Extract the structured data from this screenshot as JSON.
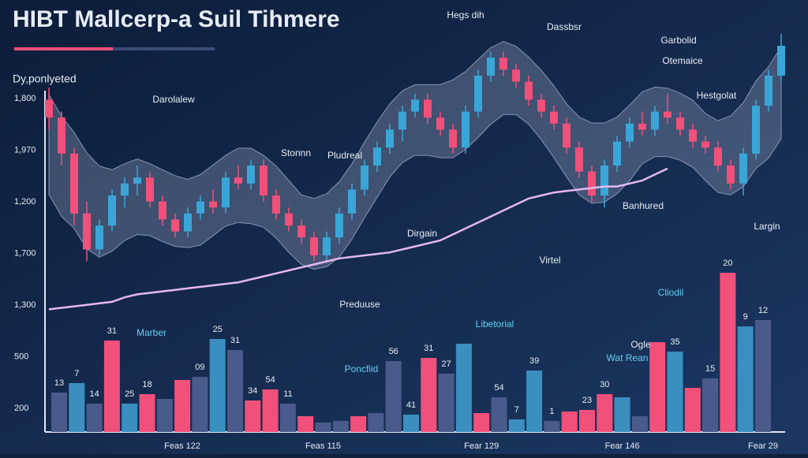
{
  "chart_data": {
    "type": "candlestick",
    "title": "HIBT Mallcerp-a Suil Tihmere",
    "y_axis_title": "Dy,ponlyeted",
    "y_axis_labels": [
      "1,800",
      "1,970",
      "1,200",
      "1,700",
      "1,300",
      "500",
      "200"
    ],
    "ylim": [
      0,
      100
    ],
    "candles": [
      [
        72,
        76,
        62,
        66
      ],
      [
        66,
        68,
        50,
        54
      ],
      [
        54,
        56,
        30,
        34
      ],
      [
        34,
        38,
        18,
        22
      ],
      [
        22,
        32,
        20,
        30
      ],
      [
        30,
        42,
        28,
        40
      ],
      [
        40,
        46,
        36,
        44
      ],
      [
        44,
        50,
        40,
        46
      ],
      [
        46,
        48,
        36,
        38
      ],
      [
        38,
        40,
        30,
        32
      ],
      [
        32,
        34,
        26,
        28
      ],
      [
        28,
        36,
        26,
        34
      ],
      [
        34,
        40,
        32,
        38
      ],
      [
        38,
        42,
        34,
        36
      ],
      [
        36,
        48,
        34,
        46
      ],
      [
        46,
        50,
        42,
        44
      ],
      [
        44,
        52,
        42,
        50
      ],
      [
        50,
        52,
        38,
        40
      ],
      [
        40,
        42,
        32,
        34
      ],
      [
        34,
        36,
        28,
        30
      ],
      [
        30,
        32,
        24,
        26
      ],
      [
        26,
        28,
        18,
        20
      ],
      [
        20,
        28,
        18,
        26
      ],
      [
        26,
        36,
        24,
        34
      ],
      [
        34,
        44,
        32,
        42
      ],
      [
        42,
        52,
        40,
        50
      ],
      [
        50,
        58,
        48,
        56
      ],
      [
        56,
        64,
        54,
        62
      ],
      [
        62,
        70,
        58,
        68
      ],
      [
        68,
        74,
        66,
        72
      ],
      [
        72,
        74,
        64,
        66
      ],
      [
        66,
        68,
        60,
        62
      ],
      [
        62,
        64,
        54,
        56
      ],
      [
        56,
        70,
        54,
        68
      ],
      [
        68,
        82,
        66,
        80
      ],
      [
        80,
        88,
        78,
        86
      ],
      [
        86,
        88,
        80,
        82
      ],
      [
        82,
        84,
        76,
        78
      ],
      [
        78,
        80,
        70,
        72
      ],
      [
        72,
        74,
        66,
        68
      ],
      [
        68,
        70,
        62,
        64
      ],
      [
        64,
        66,
        54,
        56
      ],
      [
        56,
        58,
        46,
        48
      ],
      [
        48,
        50,
        38,
        40
      ],
      [
        40,
        52,
        36,
        50
      ],
      [
        50,
        60,
        48,
        58
      ],
      [
        58,
        66,
        56,
        64
      ],
      [
        64,
        68,
        60,
        62
      ],
      [
        62,
        70,
        60,
        68
      ],
      [
        68,
        74,
        64,
        66
      ],
      [
        66,
        68,
        60,
        62
      ],
      [
        62,
        64,
        56,
        58
      ],
      [
        58,
        60,
        54,
        56
      ],
      [
        56,
        58,
        48,
        50
      ],
      [
        50,
        52,
        42,
        44
      ],
      [
        44,
        56,
        40,
        54
      ],
      [
        54,
        72,
        52,
        70
      ],
      [
        70,
        82,
        68,
        80
      ],
      [
        80,
        94,
        78,
        90
      ]
    ],
    "up_color": "#3aa6d8",
    "down_color": "#f0507a",
    "ma": {
      "color": "#e6b8f0",
      "values": [
        2,
        2.5,
        3,
        3.5,
        4,
        4.5,
        6,
        7,
        7.5,
        8,
        8.5,
        9,
        9.5,
        10,
        10.5,
        11,
        12,
        13,
        14,
        15,
        16,
        17,
        18,
        19,
        19.5,
        20,
        20.5,
        21,
        22,
        23,
        24,
        25,
        27,
        29,
        31,
        33,
        35,
        37,
        39,
        40,
        41,
        41.5,
        42,
        42.5,
        43,
        43,
        44,
        45,
        47,
        49,
        null,
        null,
        null,
        null,
        null,
        null,
        null,
        null,
        null
      ]
    },
    "bars": {
      "ylim": [
        0,
        104
      ],
      "values": [
        25,
        31,
        18,
        58,
        18,
        24,
        21,
        33,
        35,
        59,
        52,
        20,
        27,
        18,
        10,
        6,
        7,
        10,
        12,
        45,
        11,
        47,
        37,
        56,
        12,
        22,
        8,
        39,
        7,
        13,
        14,
        24,
        22,
        10,
        57,
        51,
        28,
        34,
        101,
        67,
        71
      ],
      "colors": [
        "#4a5a8a",
        "#3a8fc0",
        "#4a5a8a",
        "#f0507a",
        "#3a8fc0",
        "#f0507a",
        "#4a5a8a",
        "#f0507a",
        "#4a5a8a",
        "#3a8fc0",
        "#4a5a8a",
        "#f0507a",
        "#f0507a",
        "#4a5a8a",
        "#f0507a",
        "#4a5a8a",
        "#4a5a8a",
        "#f0507a",
        "#4a5a8a",
        "#4a5a8a",
        "#3a8fc0",
        "#f0507a",
        "#4a5a8a",
        "#3a8fc0",
        "#f0507a",
        "#4a5a8a",
        "#3a8fc0",
        "#3a8fc0",
        "#4a5a8a",
        "#f0507a",
        "#f0507a",
        "#f0507a",
        "#3a8fc0",
        "#4a5a8a",
        "#f0507a",
        "#3a8fc0",
        "#f0507a",
        "#4a5a8a",
        "#f0507a",
        "#3a8fc0",
        "#4a5a8a"
      ],
      "tags": [
        "13",
        "7",
        "14",
        "31",
        "25",
        "18",
        null,
        null,
        "09",
        "25",
        "31",
        "34",
        "54",
        "11",
        null,
        null,
        null,
        null,
        null,
        "56",
        "41",
        "31",
        "27",
        null,
        null,
        "54",
        "7",
        "39",
        "1",
        null,
        "23",
        "30",
        null,
        null,
        null,
        "35",
        null,
        "15",
        "20",
        "9",
        "12"
      ],
      "categories": [
        null,
        null,
        null,
        null,
        null,
        null,
        null,
        "Feas 122",
        null,
        null,
        null,
        null,
        null,
        null,
        null,
        "Feas 115",
        null,
        null,
        null,
        null,
        null,
        null,
        null,
        null,
        "Fear 129",
        null,
        null,
        null,
        null,
        null,
        null,
        null,
        "Fear 146",
        null,
        null,
        null,
        null,
        null,
        null,
        null,
        "Fear 29"
      ]
    },
    "annotations": [
      "Hegs dih",
      "Dassbsr",
      "Garbolid",
      "Otemaice",
      "Hestgolat",
      "Darolalew",
      "Stonnn",
      "Pludreal",
      "Banhured",
      "Dirgain",
      "Largin",
      "Virtel",
      "Preduuse",
      "Cliodil",
      "Marber",
      "Libetorial",
      "Poncfiid",
      "Ogle",
      "Wat Rean"
    ]
  }
}
